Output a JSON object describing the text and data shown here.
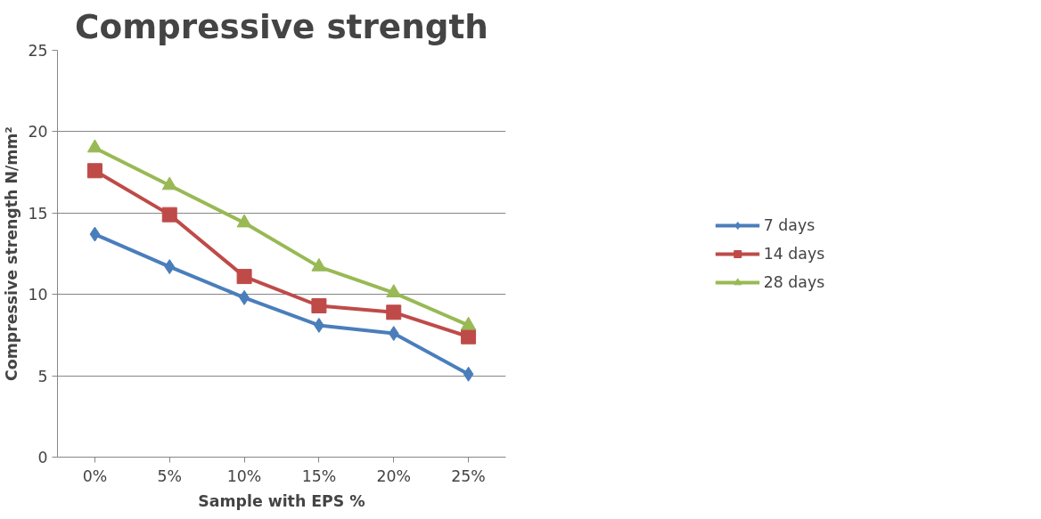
{
  "chart_data": {
    "type": "line",
    "title": "Compressive strength",
    "xlabel": "Sample with EPS %",
    "ylabel": "Compressive strength N/mm²",
    "categories": [
      "0%",
      "5%",
      "10%",
      "15%",
      "20%",
      "25%"
    ],
    "series": [
      {
        "name": "7 days",
        "color": "#4a7ebb",
        "marker": "diamond",
        "values": [
          13.7,
          11.7,
          9.8,
          8.1,
          7.6,
          5.1
        ]
      },
      {
        "name": "14 days",
        "color": "#be4b48",
        "marker": "square",
        "values": [
          17.6,
          14.9,
          11.1,
          9.3,
          8.9,
          7.4
        ]
      },
      {
        "name": "28 days",
        "color": "#98b954",
        "marker": "triangle",
        "values": [
          19.0,
          16.7,
          14.4,
          11.7,
          10.1,
          8.1
        ]
      }
    ],
    "ylim": [
      0,
      25
    ],
    "yticks": [
      0,
      5,
      10,
      15,
      20,
      25
    ],
    "grid": "y",
    "legend": "right",
    "line_style": "solid"
  }
}
